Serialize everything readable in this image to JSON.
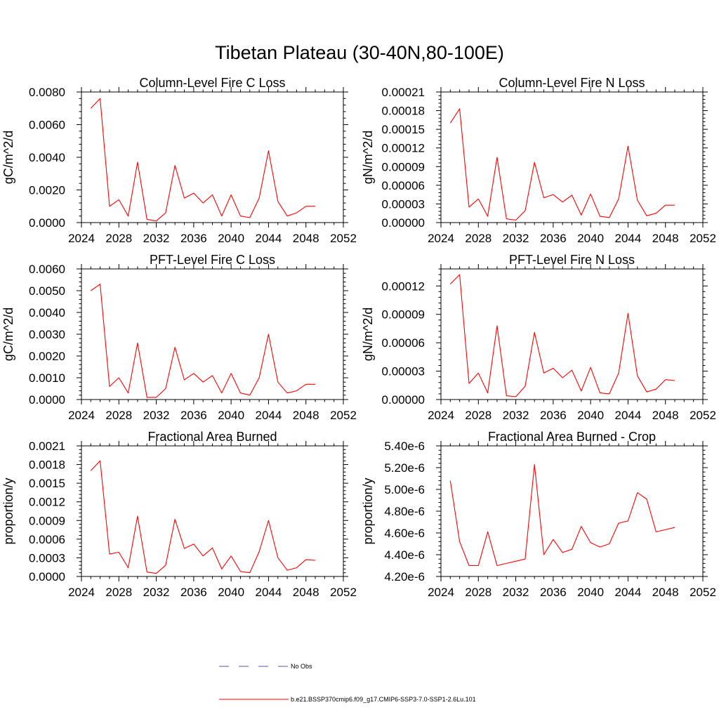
{
  "title": "Tibetan Plateau (30-40N,80-100E)",
  "colors": {
    "model": "#ff0000",
    "obs": "#5555aa",
    "axis": "#000000"
  },
  "legend": [
    {
      "label": "No Obs",
      "style": "dashed",
      "color": "#5555aa"
    },
    {
      "label": "b.e21.BSSP370cmip6.f09_g17.CMIP6-SSP3-7.0-SSP1-2.6Lu.101",
      "style": "solid",
      "color": "#ff0000"
    }
  ],
  "chart_data": [
    {
      "type": "line",
      "title": "Column-Level Fire C Loss",
      "ylabel": "gC/m^2/d",
      "xlim": [
        2024,
        2052
      ],
      "xticks": [
        "2024",
        "2028",
        "2032",
        "2036",
        "2040",
        "2044",
        "2048",
        "2052"
      ],
      "ylim": [
        0,
        0.008
      ],
      "yticks": [
        "0.0000",
        "0.0020",
        "0.0040",
        "0.0060",
        "0.0080"
      ],
      "x": [
        2025,
        2026,
        2027,
        2028,
        2029,
        2030,
        2031,
        2032,
        2033,
        2034,
        2035,
        2036,
        2037,
        2038,
        2039,
        2040,
        2041,
        2042,
        2043,
        2044,
        2045,
        2046,
        2047,
        2048,
        2049
      ],
      "series": [
        {
          "values": [
            0.007,
            0.0076,
            0.001,
            0.0014,
            0.0004,
            0.0037,
            0.0002,
            0.0001,
            0.0006,
            0.0035,
            0.0015,
            0.0018,
            0.0012,
            0.0017,
            0.0004,
            0.0017,
            0.0004,
            0.0003,
            0.0015,
            0.0044,
            0.0013,
            0.0004,
            0.0006,
            0.001,
            0.001
          ]
        }
      ]
    },
    {
      "type": "line",
      "title": "Column-Level Fire N Loss",
      "ylabel": "gN/m^2/d",
      "xlim": [
        2024,
        2052
      ],
      "xticks": [
        "2024",
        "2028",
        "2032",
        "2036",
        "2040",
        "2044",
        "2048",
        "2052"
      ],
      "ylim": [
        0,
        0.00021
      ],
      "yticks": [
        "0.00000",
        "0.00003",
        "0.00006",
        "0.00009",
        "0.00012",
        "0.00015",
        "0.00018",
        "0.00021"
      ],
      "x": [
        2025,
        2026,
        2027,
        2028,
        2029,
        2030,
        2031,
        2032,
        2033,
        2034,
        2035,
        2036,
        2037,
        2038,
        2039,
        2040,
        2041,
        2042,
        2043,
        2044,
        2045,
        2046,
        2047,
        2048,
        2049
      ],
      "series": [
        {
          "values": [
            0.00016,
            0.000183,
            2.5e-05,
            3.8e-05,
            1e-05,
            0.000105,
            6e-06,
            4e-06,
            1.9e-05,
            9.7e-05,
            4e-05,
            4.5e-05,
            3.3e-05,
            4.4e-05,
            1.2e-05,
            4.6e-05,
            1e-05,
            8e-06,
            3.8e-05,
            0.000123,
            3.6e-05,
            1.1e-05,
            1.5e-05,
            2.8e-05,
            2.8e-05
          ]
        }
      ]
    },
    {
      "type": "line",
      "title": "PFT-Level Fire C Loss",
      "ylabel": "gC/m^2/d",
      "xlim": [
        2024,
        2052
      ],
      "xticks": [
        "2024",
        "2028",
        "2032",
        "2036",
        "2040",
        "2044",
        "2048",
        "2052"
      ],
      "ylim": [
        0,
        0.006
      ],
      "yticks": [
        "0.0000",
        "0.0010",
        "0.0020",
        "0.0030",
        "0.0040",
        "0.0050",
        "0.0060"
      ],
      "x": [
        2025,
        2026,
        2027,
        2028,
        2029,
        2030,
        2031,
        2032,
        2033,
        2034,
        2035,
        2036,
        2037,
        2038,
        2039,
        2040,
        2041,
        2042,
        2043,
        2044,
        2045,
        2046,
        2047,
        2048,
        2049
      ],
      "series": [
        {
          "values": [
            0.005,
            0.0053,
            0.0006,
            0.001,
            0.0003,
            0.0026,
            0.0001,
            0.0001,
            0.0005,
            0.0024,
            0.0009,
            0.0012,
            0.0008,
            0.0011,
            0.0003,
            0.0012,
            0.0003,
            0.0002,
            0.001,
            0.003,
            0.0008,
            0.0003,
            0.0004,
            0.0007,
            0.0007
          ]
        }
      ]
    },
    {
      "type": "line",
      "title": "PFT-Level Fire N Loss",
      "ylabel": "gN/m^2/d",
      "xlim": [
        2024,
        2052
      ],
      "xticks": [
        "2024",
        "2028",
        "2032",
        "2036",
        "2040",
        "2044",
        "2048",
        "2052"
      ],
      "ylim": [
        0,
        0.000138
      ],
      "yticks": [
        "0.00000",
        "0.00003",
        "0.00006",
        "0.00009",
        "0.00012"
      ],
      "ytick_values": [
        0,
        3e-05,
        6e-05,
        9e-05,
        0.00012
      ],
      "x": [
        2025,
        2026,
        2027,
        2028,
        2029,
        2030,
        2031,
        2032,
        2033,
        2034,
        2035,
        2036,
        2037,
        2038,
        2039,
        2040,
        2041,
        2042,
        2043,
        2044,
        2045,
        2046,
        2047,
        2048,
        2049
      ],
      "series": [
        {
          "values": [
            0.000122,
            0.000132,
            1.7e-05,
            2.8e-05,
            7e-06,
            7.8e-05,
            4e-06,
            3e-06,
            1.4e-05,
            7.1e-05,
            2.8e-05,
            3.3e-05,
            2.3e-05,
            3.1e-05,
            9e-06,
            3.4e-05,
            7e-06,
            6e-06,
            2.8e-05,
            9.1e-05,
            2.5e-05,
            8e-06,
            1.1e-05,
            2.1e-05,
            2e-05
          ]
        }
      ]
    },
    {
      "type": "line",
      "title": "Fractional Area Burned",
      "ylabel": "proportion/y",
      "xlim": [
        2024,
        2052
      ],
      "xticks": [
        "2024",
        "2028",
        "2032",
        "2036",
        "2040",
        "2044",
        "2048",
        "2052"
      ],
      "ylim": [
        0,
        0.0021
      ],
      "yticks": [
        "0.0000",
        "0.0003",
        "0.0006",
        "0.0009",
        "0.0012",
        "0.0015",
        "0.0018",
        "0.0021"
      ],
      "x": [
        2025,
        2026,
        2027,
        2028,
        2029,
        2030,
        2031,
        2032,
        2033,
        2034,
        2035,
        2036,
        2037,
        2038,
        2039,
        2040,
        2041,
        2042,
        2043,
        2044,
        2045,
        2046,
        2047,
        2048,
        2049
      ],
      "series": [
        {
          "values": [
            0.0017,
            0.00186,
            0.00036,
            0.00039,
            0.00014,
            0.00097,
            7e-05,
            5e-05,
            0.00018,
            0.00092,
            0.00045,
            0.00052,
            0.00033,
            0.00046,
            0.00012,
            0.00033,
            8e-05,
            6e-05,
            0.0004,
            0.0009,
            0.0003,
            0.0001,
            0.00014,
            0.00027,
            0.00026
          ]
        }
      ]
    },
    {
      "type": "line",
      "title": "Fractional Area Burned - Crop",
      "ylabel": "proportion/y",
      "xlim": [
        2024,
        2052
      ],
      "xticks": [
        "2024",
        "2028",
        "2032",
        "2036",
        "2040",
        "2044",
        "2048",
        "2052"
      ],
      "ylim": [
        4.2e-06,
        5.4e-06
      ],
      "yticks": [
        "4.20e-6",
        "4.40e-6",
        "4.60e-6",
        "4.80e-6",
        "5.00e-6",
        "5.20e-6",
        "5.40e-6"
      ],
      "x": [
        2025,
        2026,
        2027,
        2028,
        2029,
        2030,
        2031,
        2032,
        2033,
        2034,
        2035,
        2036,
        2037,
        2038,
        2039,
        2040,
        2041,
        2042,
        2043,
        2044,
        2045,
        2046,
        2047,
        2048,
        2049
      ],
      "series": [
        {
          "values": [
            5.08e-06,
            4.52e-06,
            4.3e-06,
            4.3e-06,
            4.61e-06,
            4.3e-06,
            4.32e-06,
            4.34e-06,
            4.36e-06,
            5.23e-06,
            4.4e-06,
            4.54e-06,
            4.42e-06,
            4.45e-06,
            4.66e-06,
            4.51e-06,
            4.47e-06,
            4.5e-06,
            4.69e-06,
            4.71e-06,
            4.97e-06,
            4.91e-06,
            4.61e-06,
            4.63e-06,
            4.65e-06
          ]
        }
      ]
    }
  ]
}
